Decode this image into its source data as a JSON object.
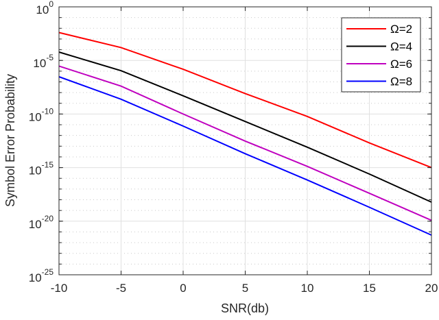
{
  "chart_data": {
    "type": "line",
    "title": "",
    "xlabel": "SNR(db)",
    "ylabel": "Symbol Error Probability",
    "yscale": "log",
    "xlim": [
      -10,
      20
    ],
    "ylim": [
      1e-25,
      1
    ],
    "grid": true,
    "legend_position": "upper right",
    "x": [
      -10,
      -5,
      0,
      5,
      10,
      15,
      20
    ],
    "x_ticks": [
      -10,
      -5,
      0,
      5,
      10,
      15,
      20
    ],
    "y_ticks": [
      {
        "exp": 0,
        "base": "10",
        "sup": "0"
      },
      {
        "exp": -5,
        "base": "10",
        "sup": "-5"
      },
      {
        "exp": -10,
        "base": "10",
        "sup": "-10"
      },
      {
        "exp": -15,
        "base": "10",
        "sup": "-15"
      },
      {
        "exp": -20,
        "base": "10",
        "sup": "-20"
      },
      {
        "exp": -25,
        "base": "10",
        "sup": "-25"
      }
    ],
    "series": [
      {
        "name": "Ω=2",
        "color": "#ff0000",
        "values": [
          0.004,
          0.00016,
          1.5e-06,
          8e-09,
          6e-11,
          2e-13,
          1e-15
        ]
      },
      {
        "name": "Ω=4",
        "color": "#000000",
        "values": [
          6e-05,
          1.1e-06,
          5e-09,
          2e-11,
          8e-14,
          2.5e-16,
          6e-19
        ]
      },
      {
        "name": "Ω=6",
        "color": "#bf00bf",
        "values": [
          3e-06,
          4e-08,
          1e-10,
          3e-13,
          1.3e-15,
          4e-18,
          1.2e-20
        ]
      },
      {
        "name": "Ω=8",
        "color": "#0000ff",
        "values": [
          3e-07,
          2.4e-09,
          7.5e-12,
          2e-14,
          7e-17,
          2e-19,
          5e-22
        ]
      }
    ]
  }
}
